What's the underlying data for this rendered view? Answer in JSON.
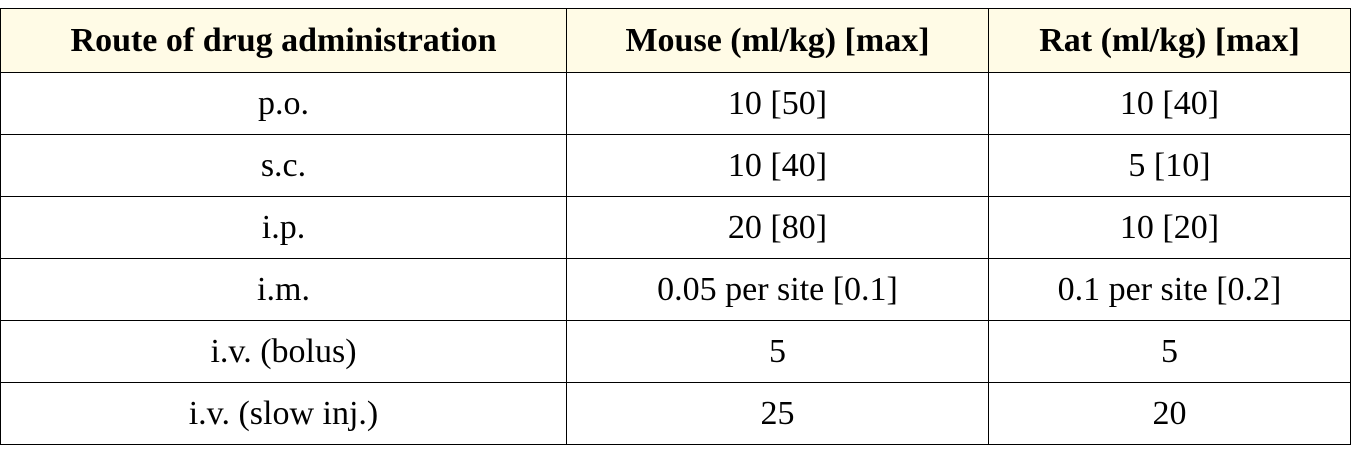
{
  "table": {
    "header": [
      "Route of drug administration",
      "Mouse (ml/kg) [max]",
      "Rat (ml/kg) [max]"
    ],
    "rows": [
      [
        "p.o.",
        "10 [50]",
        "10 [40]"
      ],
      [
        "s.c.",
        "10 [40]",
        "5 [10]"
      ],
      [
        "i.p.",
        "20 [80]",
        "10 [20]"
      ],
      [
        "i.m.",
        "0.05 per site [0.1]",
        "0.1 per site [0.2]"
      ],
      [
        "i.v. (bolus)",
        "5",
        "5"
      ],
      [
        "i.v. (slow inj.)",
        "25",
        "20"
      ]
    ]
  }
}
